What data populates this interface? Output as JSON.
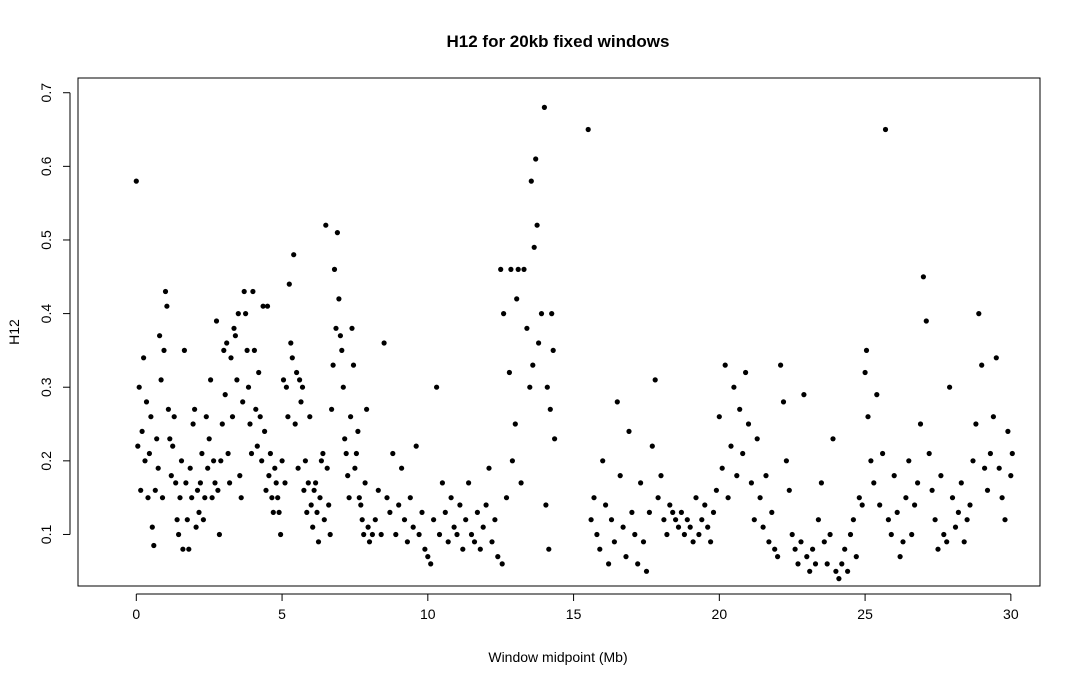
{
  "chart_data": {
    "type": "scatter",
    "title": "H12 for 20kb fixed windows",
    "xlabel": "Window midpoint (Mb)",
    "ylabel": "H12",
    "xlim": [
      -2,
      31
    ],
    "ylim": [
      0.03,
      0.72
    ],
    "xticks": [
      0,
      5,
      10,
      15,
      20,
      25,
      30
    ],
    "xtick_labels": [
      "0",
      "5",
      "10",
      "15",
      "20",
      "25",
      "30"
    ],
    "yticks": [
      0.1,
      0.2,
      0.3,
      0.4,
      0.5,
      0.6,
      0.7
    ],
    "ytick_labels": [
      "0.1",
      "0.2",
      "0.3",
      "0.4",
      "0.5",
      "0.6",
      "0.7"
    ],
    "grid": false,
    "legend": "none",
    "point_color": "#000000",
    "points": [
      [
        0.0,
        0.58
      ],
      [
        0.05,
        0.22
      ],
      [
        0.1,
        0.3
      ],
      [
        0.15,
        0.16
      ],
      [
        0.2,
        0.24
      ],
      [
        0.25,
        0.34
      ],
      [
        0.3,
        0.2
      ],
      [
        0.35,
        0.28
      ],
      [
        0.4,
        0.15
      ],
      [
        0.45,
        0.21
      ],
      [
        0.5,
        0.26
      ],
      [
        0.55,
        0.11
      ],
      [
        0.6,
        0.085
      ],
      [
        0.65,
        0.16
      ],
      [
        0.7,
        0.23
      ],
      [
        0.75,
        0.19
      ],
      [
        0.8,
        0.37
      ],
      [
        0.85,
        0.31
      ],
      [
        0.9,
        0.15
      ],
      [
        0.95,
        0.35
      ],
      [
        1.0,
        0.43
      ],
      [
        1.05,
        0.41
      ],
      [
        1.1,
        0.27
      ],
      [
        1.15,
        0.23
      ],
      [
        1.2,
        0.18
      ],
      [
        1.25,
        0.22
      ],
      [
        1.3,
        0.26
      ],
      [
        1.35,
        0.17
      ],
      [
        1.4,
        0.12
      ],
      [
        1.45,
        0.1
      ],
      [
        1.5,
        0.15
      ],
      [
        1.55,
        0.2
      ],
      [
        1.6,
        0.08
      ],
      [
        1.65,
        0.35
      ],
      [
        1.7,
        0.17
      ],
      [
        1.75,
        0.12
      ],
      [
        1.8,
        0.08
      ],
      [
        1.85,
        0.19
      ],
      [
        1.9,
        0.15
      ],
      [
        1.95,
        0.25
      ],
      [
        2.0,
        0.27
      ],
      [
        2.05,
        0.11
      ],
      [
        2.1,
        0.16
      ],
      [
        2.15,
        0.13
      ],
      [
        2.2,
        0.17
      ],
      [
        2.25,
        0.21
      ],
      [
        2.3,
        0.12
      ],
      [
        2.35,
        0.15
      ],
      [
        2.4,
        0.26
      ],
      [
        2.45,
        0.19
      ],
      [
        2.5,
        0.23
      ],
      [
        2.55,
        0.31
      ],
      [
        2.6,
        0.15
      ],
      [
        2.65,
        0.2
      ],
      [
        2.7,
        0.17
      ],
      [
        2.75,
        0.39
      ],
      [
        2.8,
        0.16
      ],
      [
        2.85,
        0.1
      ],
      [
        2.9,
        0.2
      ],
      [
        2.95,
        0.25
      ],
      [
        3.0,
        0.35
      ],
      [
        3.05,
        0.29
      ],
      [
        3.1,
        0.36
      ],
      [
        3.15,
        0.21
      ],
      [
        3.2,
        0.17
      ],
      [
        3.25,
        0.34
      ],
      [
        3.3,
        0.26
      ],
      [
        3.35,
        0.38
      ],
      [
        3.4,
        0.37
      ],
      [
        3.45,
        0.31
      ],
      [
        3.5,
        0.4
      ],
      [
        3.55,
        0.18
      ],
      [
        3.6,
        0.15
      ],
      [
        3.65,
        0.28
      ],
      [
        3.7,
        0.43
      ],
      [
        3.75,
        0.4
      ],
      [
        3.8,
        0.35
      ],
      [
        3.85,
        0.3
      ],
      [
        3.9,
        0.25
      ],
      [
        3.95,
        0.21
      ],
      [
        4.0,
        0.43
      ],
      [
        4.05,
        0.35
      ],
      [
        4.1,
        0.27
      ],
      [
        4.15,
        0.22
      ],
      [
        4.2,
        0.32
      ],
      [
        4.25,
        0.26
      ],
      [
        4.3,
        0.2
      ],
      [
        4.35,
        0.41
      ],
      [
        4.4,
        0.24
      ],
      [
        4.45,
        0.16
      ],
      [
        4.5,
        0.41
      ],
      [
        4.55,
        0.18
      ],
      [
        4.6,
        0.21
      ],
      [
        4.65,
        0.15
      ],
      [
        4.7,
        0.13
      ],
      [
        4.75,
        0.19
      ],
      [
        4.8,
        0.17
      ],
      [
        4.85,
        0.15
      ],
      [
        4.9,
        0.13
      ],
      [
        4.95,
        0.1
      ],
      [
        5.0,
        0.2
      ],
      [
        5.05,
        0.31
      ],
      [
        5.1,
        0.17
      ],
      [
        5.15,
        0.3
      ],
      [
        5.2,
        0.26
      ],
      [
        5.25,
        0.44
      ],
      [
        5.3,
        0.36
      ],
      [
        5.35,
        0.34
      ],
      [
        5.4,
        0.48
      ],
      [
        5.45,
        0.25
      ],
      [
        5.5,
        0.32
      ],
      [
        5.55,
        0.19
      ],
      [
        5.6,
        0.31
      ],
      [
        5.65,
        0.28
      ],
      [
        5.7,
        0.3
      ],
      [
        5.75,
        0.16
      ],
      [
        5.8,
        0.2
      ],
      [
        5.85,
        0.13
      ],
      [
        5.9,
        0.17
      ],
      [
        5.95,
        0.26
      ],
      [
        6.0,
        0.14
      ],
      [
        6.05,
        0.11
      ],
      [
        6.1,
        0.16
      ],
      [
        6.15,
        0.17
      ],
      [
        6.2,
        0.13
      ],
      [
        6.25,
        0.09
      ],
      [
        6.3,
        0.15
      ],
      [
        6.35,
        0.2
      ],
      [
        6.4,
        0.21
      ],
      [
        6.45,
        0.12
      ],
      [
        6.5,
        0.52
      ],
      [
        6.55,
        0.19
      ],
      [
        6.6,
        0.14
      ],
      [
        6.65,
        0.1
      ],
      [
        6.7,
        0.27
      ],
      [
        6.75,
        0.33
      ],
      [
        6.8,
        0.46
      ],
      [
        6.85,
        0.38
      ],
      [
        6.9,
        0.51
      ],
      [
        6.95,
        0.42
      ],
      [
        7.0,
        0.37
      ],
      [
        7.05,
        0.35
      ],
      [
        7.1,
        0.3
      ],
      [
        7.15,
        0.23
      ],
      [
        7.2,
        0.21
      ],
      [
        7.25,
        0.18
      ],
      [
        7.3,
        0.15
      ],
      [
        7.35,
        0.26
      ],
      [
        7.4,
        0.38
      ],
      [
        7.45,
        0.33
      ],
      [
        7.5,
        0.19
      ],
      [
        7.55,
        0.21
      ],
      [
        7.6,
        0.24
      ],
      [
        7.65,
        0.15
      ],
      [
        7.7,
        0.14
      ],
      [
        7.75,
        0.12
      ],
      [
        7.8,
        0.1
      ],
      [
        7.85,
        0.17
      ],
      [
        7.9,
        0.27
      ],
      [
        7.95,
        0.11
      ],
      [
        8.0,
        0.09
      ],
      [
        8.1,
        0.1
      ],
      [
        8.2,
        0.12
      ],
      [
        8.3,
        0.16
      ],
      [
        8.4,
        0.1
      ],
      [
        8.5,
        0.36
      ],
      [
        8.6,
        0.15
      ],
      [
        8.7,
        0.13
      ],
      [
        8.8,
        0.21
      ],
      [
        8.9,
        0.1
      ],
      [
        9.0,
        0.14
      ],
      [
        9.1,
        0.19
      ],
      [
        9.2,
        0.12
      ],
      [
        9.3,
        0.09
      ],
      [
        9.4,
        0.15
      ],
      [
        9.5,
        0.11
      ],
      [
        9.6,
        0.22
      ],
      [
        9.7,
        0.1
      ],
      [
        9.8,
        0.13
      ],
      [
        9.9,
        0.08
      ],
      [
        10.0,
        0.07
      ],
      [
        10.1,
        0.06
      ],
      [
        10.2,
        0.12
      ],
      [
        10.3,
        0.3
      ],
      [
        10.4,
        0.1
      ],
      [
        10.5,
        0.17
      ],
      [
        10.6,
        0.13
      ],
      [
        10.7,
        0.09
      ],
      [
        10.8,
        0.15
      ],
      [
        10.9,
        0.11
      ],
      [
        11.0,
        0.1
      ],
      [
        11.1,
        0.14
      ],
      [
        11.2,
        0.08
      ],
      [
        11.3,
        0.12
      ],
      [
        11.4,
        0.17
      ],
      [
        11.5,
        0.1
      ],
      [
        11.6,
        0.09
      ],
      [
        11.7,
        0.13
      ],
      [
        11.8,
        0.08
      ],
      [
        11.9,
        0.11
      ],
      [
        12.0,
        0.14
      ],
      [
        12.1,
        0.19
      ],
      [
        12.2,
        0.09
      ],
      [
        12.3,
        0.12
      ],
      [
        12.4,
        0.07
      ],
      [
        12.5,
        0.46
      ],
      [
        12.55,
        0.06
      ],
      [
        12.6,
        0.4
      ],
      [
        12.7,
        0.15
      ],
      [
        12.8,
        0.32
      ],
      [
        12.85,
        0.46
      ],
      [
        12.9,
        0.2
      ],
      [
        13.0,
        0.25
      ],
      [
        13.05,
        0.42
      ],
      [
        13.1,
        0.46
      ],
      [
        13.2,
        0.17
      ],
      [
        13.3,
        0.46
      ],
      [
        13.4,
        0.38
      ],
      [
        13.5,
        0.3
      ],
      [
        13.55,
        0.58
      ],
      [
        13.6,
        0.33
      ],
      [
        13.65,
        0.49
      ],
      [
        13.7,
        0.61
      ],
      [
        13.75,
        0.52
      ],
      [
        13.8,
        0.36
      ],
      [
        13.9,
        0.4
      ],
      [
        14.0,
        0.68
      ],
      [
        14.05,
        0.14
      ],
      [
        14.1,
        0.3
      ],
      [
        14.15,
        0.08
      ],
      [
        14.2,
        0.27
      ],
      [
        14.25,
        0.4
      ],
      [
        14.3,
        0.35
      ],
      [
        14.35,
        0.23
      ],
      [
        15.5,
        0.65
      ],
      [
        15.6,
        0.12
      ],
      [
        15.7,
        0.15
      ],
      [
        15.8,
        0.1
      ],
      [
        15.9,
        0.08
      ],
      [
        16.0,
        0.2
      ],
      [
        16.1,
        0.14
      ],
      [
        16.2,
        0.06
      ],
      [
        16.3,
        0.12
      ],
      [
        16.4,
        0.09
      ],
      [
        16.5,
        0.28
      ],
      [
        16.6,
        0.18
      ],
      [
        16.7,
        0.11
      ],
      [
        16.8,
        0.07
      ],
      [
        16.9,
        0.24
      ],
      [
        17.0,
        0.13
      ],
      [
        17.1,
        0.1
      ],
      [
        17.2,
        0.06
      ],
      [
        17.3,
        0.17
      ],
      [
        17.4,
        0.09
      ],
      [
        17.5,
        0.05
      ],
      [
        17.6,
        0.13
      ],
      [
        17.7,
        0.22
      ],
      [
        17.8,
        0.31
      ],
      [
        17.9,
        0.15
      ],
      [
        18.0,
        0.18
      ],
      [
        18.1,
        0.12
      ],
      [
        18.2,
        0.1
      ],
      [
        18.3,
        0.14
      ],
      [
        18.4,
        0.13
      ],
      [
        18.5,
        0.12
      ],
      [
        18.6,
        0.11
      ],
      [
        18.7,
        0.13
      ],
      [
        18.8,
        0.1
      ],
      [
        18.9,
        0.12
      ],
      [
        19.0,
        0.11
      ],
      [
        19.1,
        0.09
      ],
      [
        19.2,
        0.15
      ],
      [
        19.3,
        0.1
      ],
      [
        19.4,
        0.12
      ],
      [
        19.5,
        0.14
      ],
      [
        19.6,
        0.11
      ],
      [
        19.7,
        0.09
      ],
      [
        19.8,
        0.13
      ],
      [
        19.9,
        0.16
      ],
      [
        20.0,
        0.26
      ],
      [
        20.1,
        0.19
      ],
      [
        20.2,
        0.33
      ],
      [
        20.3,
        0.15
      ],
      [
        20.4,
        0.22
      ],
      [
        20.5,
        0.3
      ],
      [
        20.6,
        0.18
      ],
      [
        20.7,
        0.27
      ],
      [
        20.8,
        0.21
      ],
      [
        20.9,
        0.32
      ],
      [
        21.0,
        0.25
      ],
      [
        21.1,
        0.17
      ],
      [
        21.2,
        0.12
      ],
      [
        21.3,
        0.23
      ],
      [
        21.4,
        0.15
      ],
      [
        21.5,
        0.11
      ],
      [
        21.6,
        0.18
      ],
      [
        21.7,
        0.09
      ],
      [
        21.8,
        0.13
      ],
      [
        21.9,
        0.08
      ],
      [
        22.0,
        0.07
      ],
      [
        22.1,
        0.33
      ],
      [
        22.2,
        0.28
      ],
      [
        22.3,
        0.2
      ],
      [
        22.4,
        0.16
      ],
      [
        22.5,
        0.1
      ],
      [
        22.6,
        0.08
      ],
      [
        22.7,
        0.06
      ],
      [
        22.8,
        0.09
      ],
      [
        22.9,
        0.29
      ],
      [
        23.0,
        0.07
      ],
      [
        23.1,
        0.05
      ],
      [
        23.2,
        0.08
      ],
      [
        23.3,
        0.06
      ],
      [
        23.4,
        0.12
      ],
      [
        23.5,
        0.17
      ],
      [
        23.6,
        0.09
      ],
      [
        23.7,
        0.06
      ],
      [
        23.8,
        0.1
      ],
      [
        23.9,
        0.23
      ],
      [
        24.0,
        0.05
      ],
      [
        24.1,
        0.04
      ],
      [
        24.2,
        0.06
      ],
      [
        24.3,
        0.08
      ],
      [
        24.4,
        0.05
      ],
      [
        24.5,
        0.1
      ],
      [
        24.6,
        0.12
      ],
      [
        24.7,
        0.07
      ],
      [
        24.8,
        0.15
      ],
      [
        24.9,
        0.14
      ],
      [
        25.0,
        0.32
      ],
      [
        25.05,
        0.35
      ],
      [
        25.1,
        0.26
      ],
      [
        25.2,
        0.2
      ],
      [
        25.3,
        0.17
      ],
      [
        25.4,
        0.29
      ],
      [
        25.5,
        0.14
      ],
      [
        25.6,
        0.21
      ],
      [
        25.7,
        0.65
      ],
      [
        25.8,
        0.12
      ],
      [
        25.9,
        0.1
      ],
      [
        26.0,
        0.18
      ],
      [
        26.1,
        0.13
      ],
      [
        26.2,
        0.07
      ],
      [
        26.3,
        0.09
      ],
      [
        26.4,
        0.15
      ],
      [
        26.5,
        0.2
      ],
      [
        26.6,
        0.1
      ],
      [
        26.7,
        0.14
      ],
      [
        26.8,
        0.17
      ],
      [
        26.9,
        0.25
      ],
      [
        27.0,
        0.45
      ],
      [
        27.1,
        0.39
      ],
      [
        27.2,
        0.21
      ],
      [
        27.3,
        0.16
      ],
      [
        27.4,
        0.12
      ],
      [
        27.5,
        0.08
      ],
      [
        27.6,
        0.18
      ],
      [
        27.7,
        0.1
      ],
      [
        27.8,
        0.09
      ],
      [
        27.9,
        0.3
      ],
      [
        28.0,
        0.15
      ],
      [
        28.1,
        0.11
      ],
      [
        28.2,
        0.13
      ],
      [
        28.3,
        0.17
      ],
      [
        28.4,
        0.09
      ],
      [
        28.5,
        0.12
      ],
      [
        28.6,
        0.14
      ],
      [
        28.7,
        0.2
      ],
      [
        28.8,
        0.25
      ],
      [
        28.9,
        0.4
      ],
      [
        29.0,
        0.33
      ],
      [
        29.1,
        0.19
      ],
      [
        29.2,
        0.16
      ],
      [
        29.3,
        0.21
      ],
      [
        29.4,
        0.26
      ],
      [
        29.5,
        0.34
      ],
      [
        29.6,
        0.19
      ],
      [
        29.7,
        0.15
      ],
      [
        29.8,
        0.12
      ],
      [
        29.9,
        0.24
      ],
      [
        30.0,
        0.18
      ],
      [
        30.05,
        0.21
      ]
    ]
  }
}
